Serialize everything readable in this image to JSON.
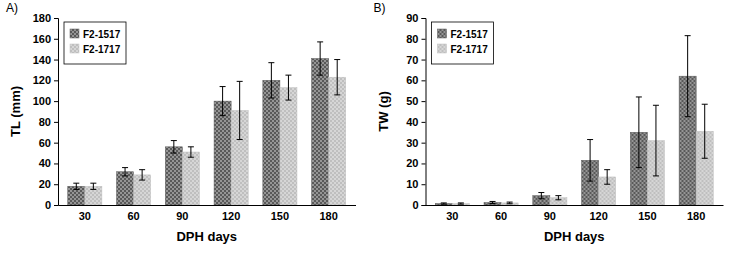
{
  "chart_data": [
    {
      "type": "bar",
      "title": "A)",
      "x_label": "DPH days",
      "y_label": "TL (mm)",
      "categories": [
        "30",
        "60",
        "90",
        "120",
        "150",
        "180"
      ],
      "series": [
        {
          "name": "F2-1517",
          "color": "#595959",
          "values": [
            18,
            32,
            56,
            100,
            120,
            141
          ],
          "errors": [
            3,
            4,
            6,
            14,
            17,
            16
          ]
        },
        {
          "name": "F2-1717",
          "color": "#bfbfbf",
          "values": [
            18,
            29,
            51,
            91,
            113,
            123
          ],
          "errors": [
            3,
            5,
            5,
            28,
            12,
            17
          ]
        }
      ],
      "ylim": [
        0,
        180
      ],
      "yticks": [
        0,
        20,
        40,
        60,
        80,
        100,
        120,
        140,
        160,
        180
      ],
      "legend": "upper left"
    },
    {
      "type": "bar",
      "title": "B)",
      "x_label": "DPH days",
      "y_label": "TW (g)",
      "categories": [
        "30",
        "60",
        "90",
        "120",
        "150",
        "180"
      ],
      "series": [
        {
          "name": "F2-1517",
          "color": "#595959",
          "values": [
            0.7,
            1.2,
            4.5,
            21.5,
            35,
            62
          ],
          "errors": [
            0.3,
            0.5,
            1.5,
            10,
            17,
            19.5
          ]
        },
        {
          "name": "F2-1717",
          "color": "#bfbfbf",
          "values": [
            0.7,
            1,
            3.5,
            13.5,
            31,
            35.5
          ],
          "errors": [
            0.3,
            0.4,
            1,
            3.5,
            17,
            13
          ]
        }
      ],
      "ylim": [
        0,
        90
      ],
      "yticks": [
        0,
        10,
        20,
        30,
        40,
        50,
        60,
        70,
        80,
        90
      ],
      "legend": "upper left"
    }
  ]
}
